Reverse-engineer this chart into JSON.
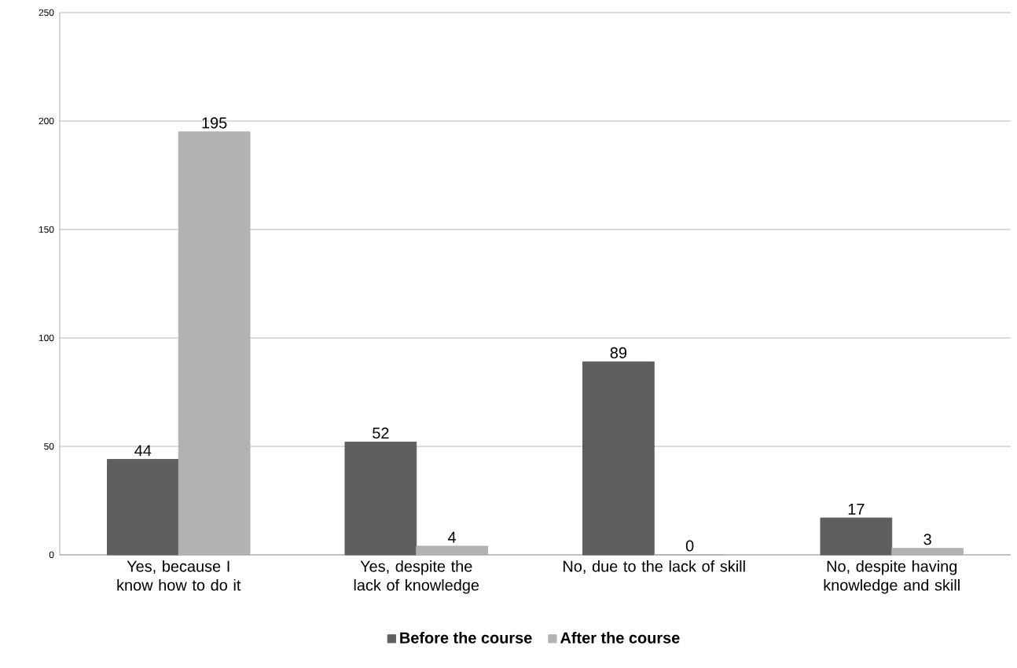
{
  "chart_data": {
    "type": "bar",
    "categories": [
      "Yes, because I know how to do it",
      "Yes, despite the lack of knowledge",
      "No, due to the lack of skill",
      "No, despite having knowledge and skill"
    ],
    "series": [
      {
        "name": "Before the course",
        "color": "#5f5f5f",
        "values": [
          44,
          52,
          89,
          17
        ]
      },
      {
        "name": "After the course",
        "color": "#b2b2b2",
        "values": [
          195,
          4,
          0,
          3
        ]
      }
    ],
    "ylim": [
      0,
      250
    ],
    "yticks": [
      0,
      50,
      100,
      150,
      200,
      250
    ],
    "grid": "y",
    "legend": "bottom",
    "data_labels": true
  }
}
